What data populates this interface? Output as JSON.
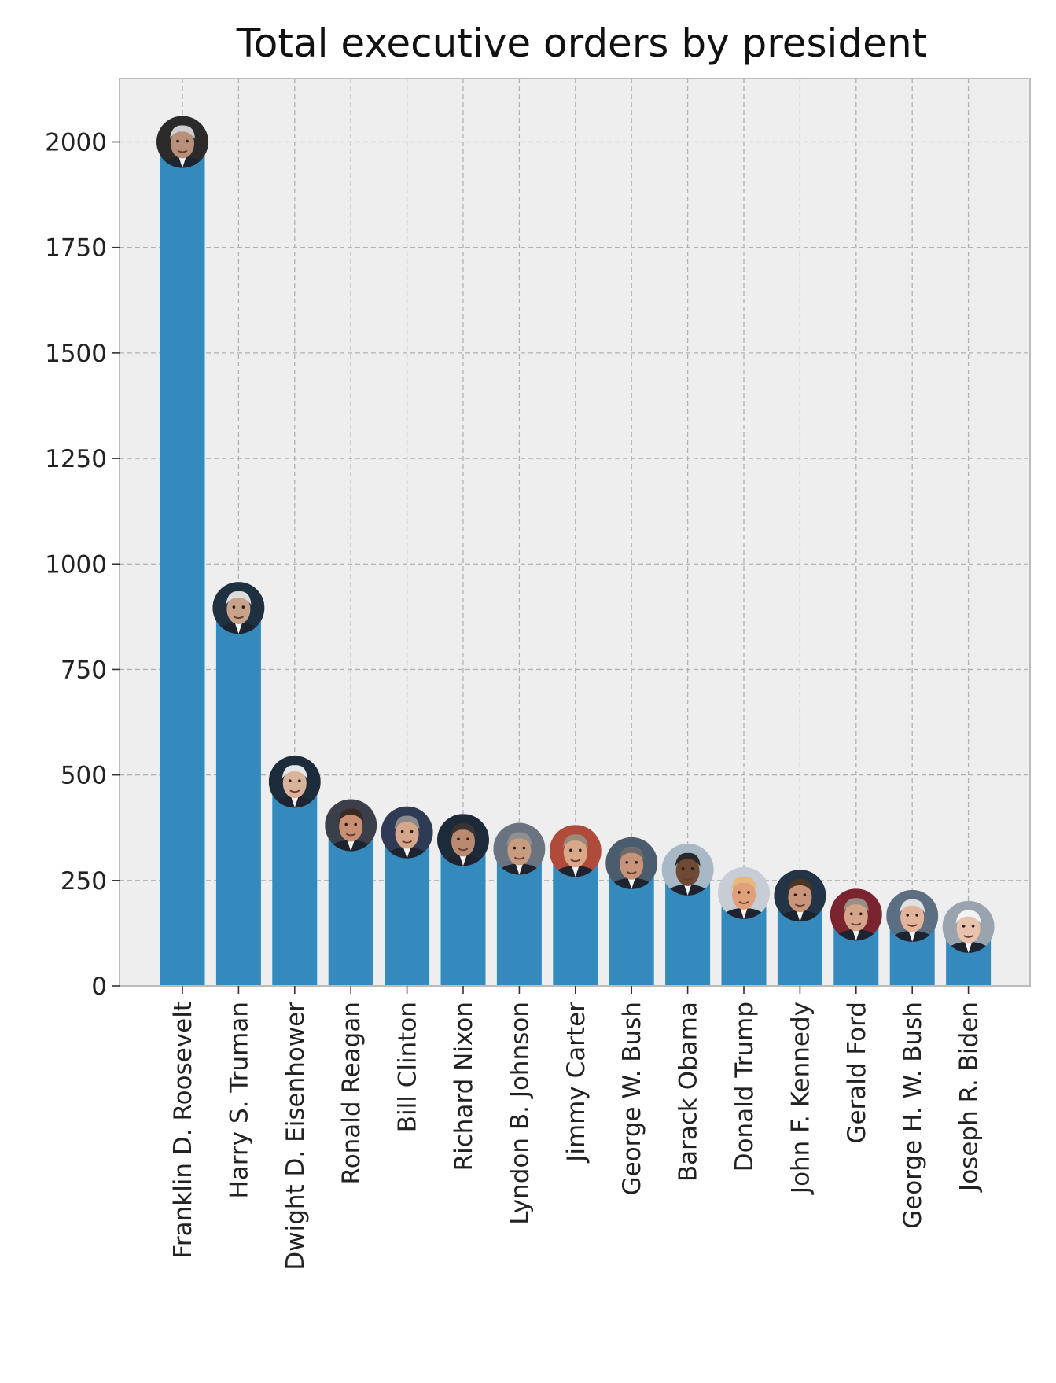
{
  "chart_data": {
    "type": "bar",
    "title": "Total executive orders by president",
    "xlabel": "",
    "ylabel": "",
    "ylim": [
      0,
      2150
    ],
    "yticks": [
      0,
      250,
      500,
      750,
      1000,
      1250,
      1500,
      1750,
      2000
    ],
    "grid": true,
    "bar_color": "#348ABD",
    "background_color": "#EEEEEE",
    "marker": "circular president portrait at top of each bar",
    "categories": [
      "Franklin D. Roosevelt",
      "Harry S. Truman",
      "Dwight D. Eisenhower",
      "Ronald Reagan",
      "Bill Clinton",
      "Richard Nixon",
      "Lyndon B. Johnson",
      "Jimmy Carter",
      "George W. Bush",
      "Barack Obama",
      "Donald Trump",
      "John F. Kennedy",
      "Gerald Ford",
      "George H. W. Bush",
      "Joseph R. Biden"
    ],
    "values": [
      2000,
      896,
      484,
      381,
      364,
      346,
      325,
      320,
      291,
      276,
      220,
      214,
      169,
      166,
      140
    ]
  }
}
